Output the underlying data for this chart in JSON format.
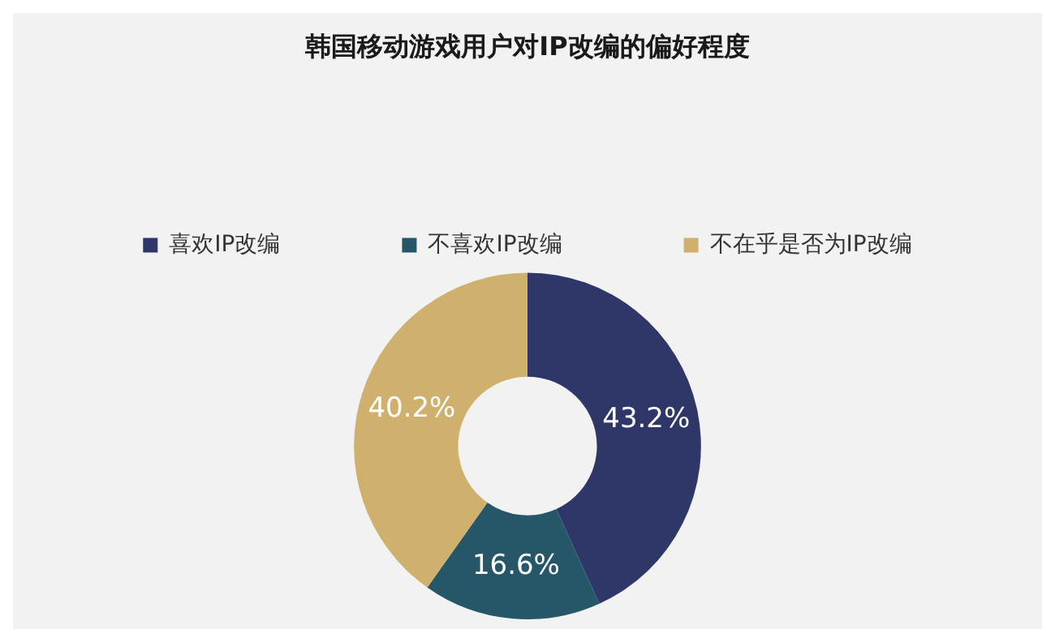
{
  "chart_data": {
    "type": "donut",
    "title": "韩国移动游戏用户对IP改编的偏好程度",
    "categories": [
      "喜欢IP改编",
      "不喜欢IP改编",
      "不在乎是否为IP改编"
    ],
    "values": [
      43.2,
      16.6,
      40.2
    ],
    "colors": [
      "#2e3767",
      "#255768",
      "#cfb06c"
    ],
    "value_labels": [
      "43.2%",
      "16.6%",
      "40.2%"
    ],
    "legend": "top"
  }
}
